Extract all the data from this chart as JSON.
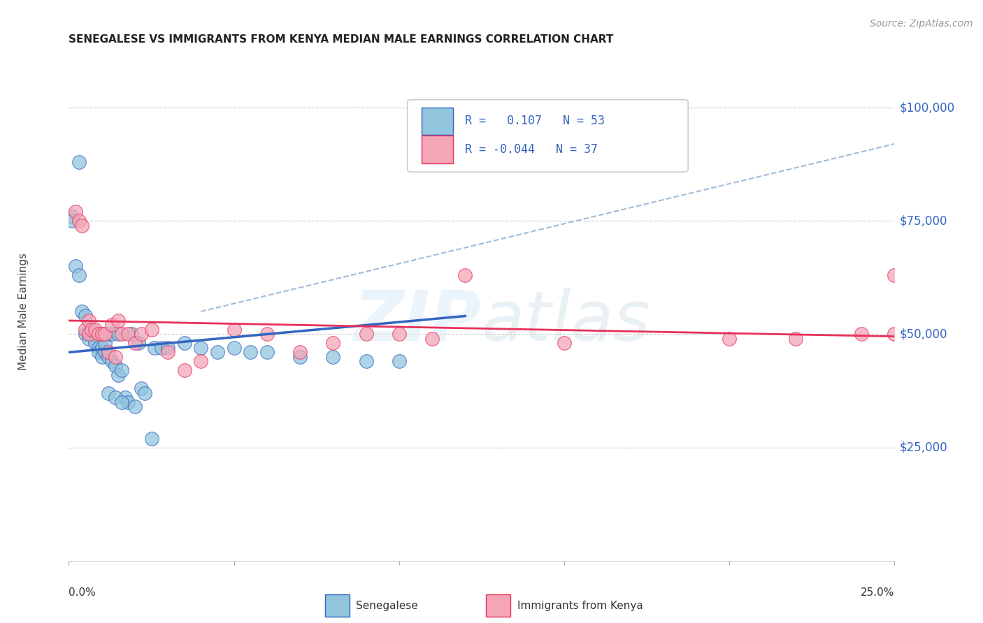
{
  "title": "SENEGALESE VS IMMIGRANTS FROM KENYA MEDIAN MALE EARNINGS CORRELATION CHART",
  "source": "Source: ZipAtlas.com",
  "ylabel": "Median Male Earnings",
  "yticks": [
    25000,
    50000,
    75000,
    100000
  ],
  "ytick_labels": [
    "$25,000",
    "$50,000",
    "$75,000",
    "$100,000"
  ],
  "watermark_zip": "ZIP",
  "watermark_atlas": "atlas",
  "color_blue": "#92c5de",
  "color_pink": "#f4a6b8",
  "trendline_blue": "#3465c0",
  "trendline_pink": "#e8305a",
  "trendline_dashed_color": "#a0bcd8",
  "xlim": [
    0.0,
    0.25
  ],
  "ylim": [
    0,
    110000
  ],
  "blue_label": "Senegalese",
  "pink_label": "Immigrants from Kenya",
  "blue_x": [
    0.001,
    0.001,
    0.002,
    0.003,
    0.003,
    0.004,
    0.005,
    0.005,
    0.006,
    0.006,
    0.007,
    0.007,
    0.008,
    0.008,
    0.009,
    0.009,
    0.01,
    0.01,
    0.01,
    0.011,
    0.011,
    0.012,
    0.012,
    0.013,
    0.013,
    0.014,
    0.015,
    0.015,
    0.016,
    0.017,
    0.018,
    0.019,
    0.02,
    0.021,
    0.022,
    0.023,
    0.025,
    0.026,
    0.028,
    0.03,
    0.035,
    0.04,
    0.045,
    0.05,
    0.055,
    0.06,
    0.07,
    0.08,
    0.09,
    0.1,
    0.012,
    0.014,
    0.016
  ],
  "blue_y": [
    76000,
    75000,
    65000,
    63000,
    88000,
    55000,
    54000,
    50000,
    50000,
    49000,
    51000,
    50000,
    50000,
    48000,
    47000,
    46000,
    45000,
    47000,
    50000,
    46000,
    48000,
    50000,
    45000,
    50000,
    44000,
    43000,
    41000,
    50000,
    42000,
    36000,
    35000,
    50000,
    34000,
    48000,
    38000,
    37000,
    27000,
    47000,
    47000,
    47000,
    48000,
    47000,
    46000,
    47000,
    46000,
    46000,
    45000,
    45000,
    44000,
    44000,
    37000,
    36000,
    35000
  ],
  "pink_x": [
    0.002,
    0.003,
    0.004,
    0.005,
    0.006,
    0.006,
    0.007,
    0.008,
    0.009,
    0.01,
    0.011,
    0.012,
    0.013,
    0.014,
    0.015,
    0.016,
    0.018,
    0.02,
    0.022,
    0.025,
    0.03,
    0.035,
    0.04,
    0.05,
    0.06,
    0.07,
    0.08,
    0.09,
    0.1,
    0.11,
    0.12,
    0.15,
    0.2,
    0.22,
    0.24,
    0.25,
    0.25
  ],
  "pink_y": [
    77000,
    75000,
    74000,
    51000,
    53000,
    50000,
    51000,
    51000,
    50000,
    50000,
    50000,
    46000,
    52000,
    45000,
    53000,
    50000,
    50000,
    48000,
    50000,
    51000,
    46000,
    42000,
    44000,
    51000,
    50000,
    46000,
    48000,
    50000,
    50000,
    49000,
    63000,
    48000,
    49000,
    49000,
    50000,
    50000,
    63000
  ],
  "blue_trend_x0": 0.0,
  "blue_trend_y0": 46000,
  "blue_trend_x1": 0.12,
  "blue_trend_y1": 54000,
  "pink_trend_x0": 0.0,
  "pink_trend_y0": 53000,
  "pink_trend_x1": 0.25,
  "pink_trend_y1": 49500,
  "dash_trend_x0": 0.04,
  "dash_trend_y0": 55000,
  "dash_trend_x1": 0.25,
  "dash_trend_y1": 92000
}
